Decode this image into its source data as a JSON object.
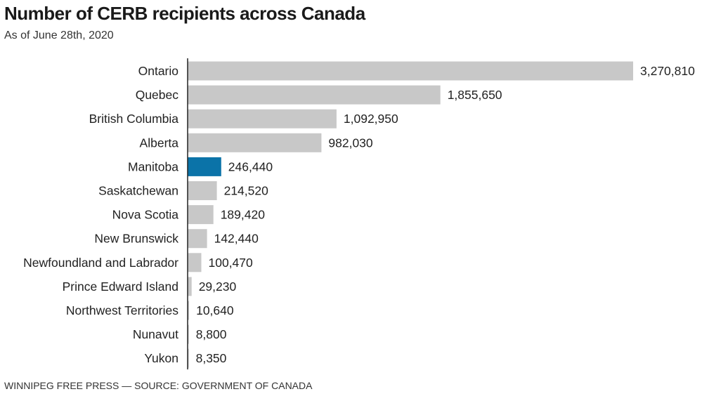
{
  "header": {
    "title": "Number of CERB recipients across Canada",
    "subtitle": "As of June 28th, 2020"
  },
  "footer": {
    "credit": "WINNIPEG FREE PRESS — SOURCE: GOVERNMENT OF CANADA"
  },
  "colors": {
    "bar": "#c8c8c8",
    "highlight": "#0b73a8",
    "axis": "#222222"
  },
  "chart_data": {
    "type": "bar",
    "orientation": "horizontal",
    "title": "Number of CERB recipients across Canada",
    "subtitle": "As of June 28th, 2020",
    "xlabel": "",
    "ylabel": "",
    "xlim": [
      0,
      3270810
    ],
    "grid": false,
    "legend": "none",
    "highlighted_category": "Manitoba",
    "categories": [
      "Ontario",
      "Quebec",
      "British Columbia",
      "Alberta",
      "Manitoba",
      "Saskatchewan",
      "Nova Scotia",
      "New Brunswick",
      "Newfoundland and Labrador",
      "Prince Edward Island",
      "Northwest Territories",
      "Nunavut",
      "Yukon"
    ],
    "values": [
      3270810,
      1855650,
      1092950,
      982030,
      246440,
      214520,
      189420,
      142440,
      100470,
      29230,
      10640,
      8800,
      8350
    ],
    "value_labels": [
      "3,270,810",
      "1,855,650",
      "1,092,950",
      "982,030",
      "246,440",
      "214,520",
      "189,420",
      "142,440",
      "100,470",
      "29,230",
      "10,640",
      "8,800",
      "8,350"
    ]
  }
}
